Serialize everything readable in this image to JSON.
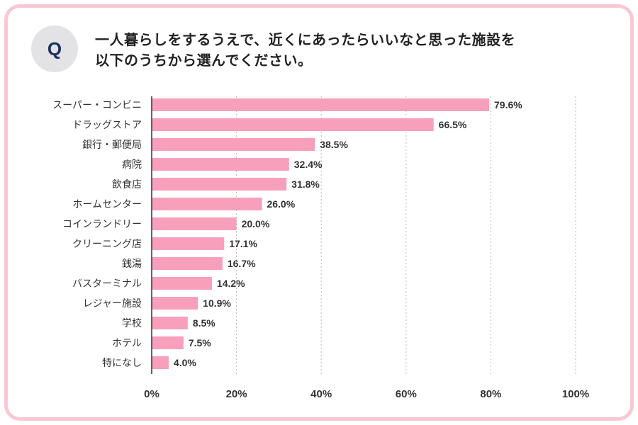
{
  "question": {
    "badge": "Q",
    "line1": "一人暮らしをするうえで、近くにあったらいいなと思った施設を",
    "line2": "以下のうちから選んでください。"
  },
  "chart_data": {
    "type": "bar",
    "orientation": "horizontal",
    "categories": [
      "スーパー・コンビニ",
      "ドラッグストア",
      "銀行・郵便局",
      "病院",
      "飲食店",
      "ホームセンター",
      "コインランドリー",
      "クリーニング店",
      "銭湯",
      "バスターミナル",
      "レジャー施設",
      "学校",
      "ホテル",
      "特になし"
    ],
    "values": [
      79.6,
      66.5,
      38.5,
      32.4,
      31.8,
      26.0,
      20.0,
      17.1,
      16.7,
      14.2,
      10.9,
      8.5,
      7.5,
      4.0
    ],
    "value_labels": [
      "79.6%",
      "66.5%",
      "38.5%",
      "32.4%",
      "31.8%",
      "26.0%",
      "20.0%",
      "17.1%",
      "16.7%",
      "14.2%",
      "10.9%",
      "8.5%",
      "7.5%",
      "4.0%"
    ],
    "xlim": [
      0,
      100
    ],
    "xticks": [
      0,
      20,
      40,
      60,
      80,
      100
    ],
    "xtick_labels": [
      "0%",
      "20%",
      "40%",
      "60%",
      "80%",
      "100%"
    ],
    "bar_color": "#f79fbb",
    "grid": true
  }
}
